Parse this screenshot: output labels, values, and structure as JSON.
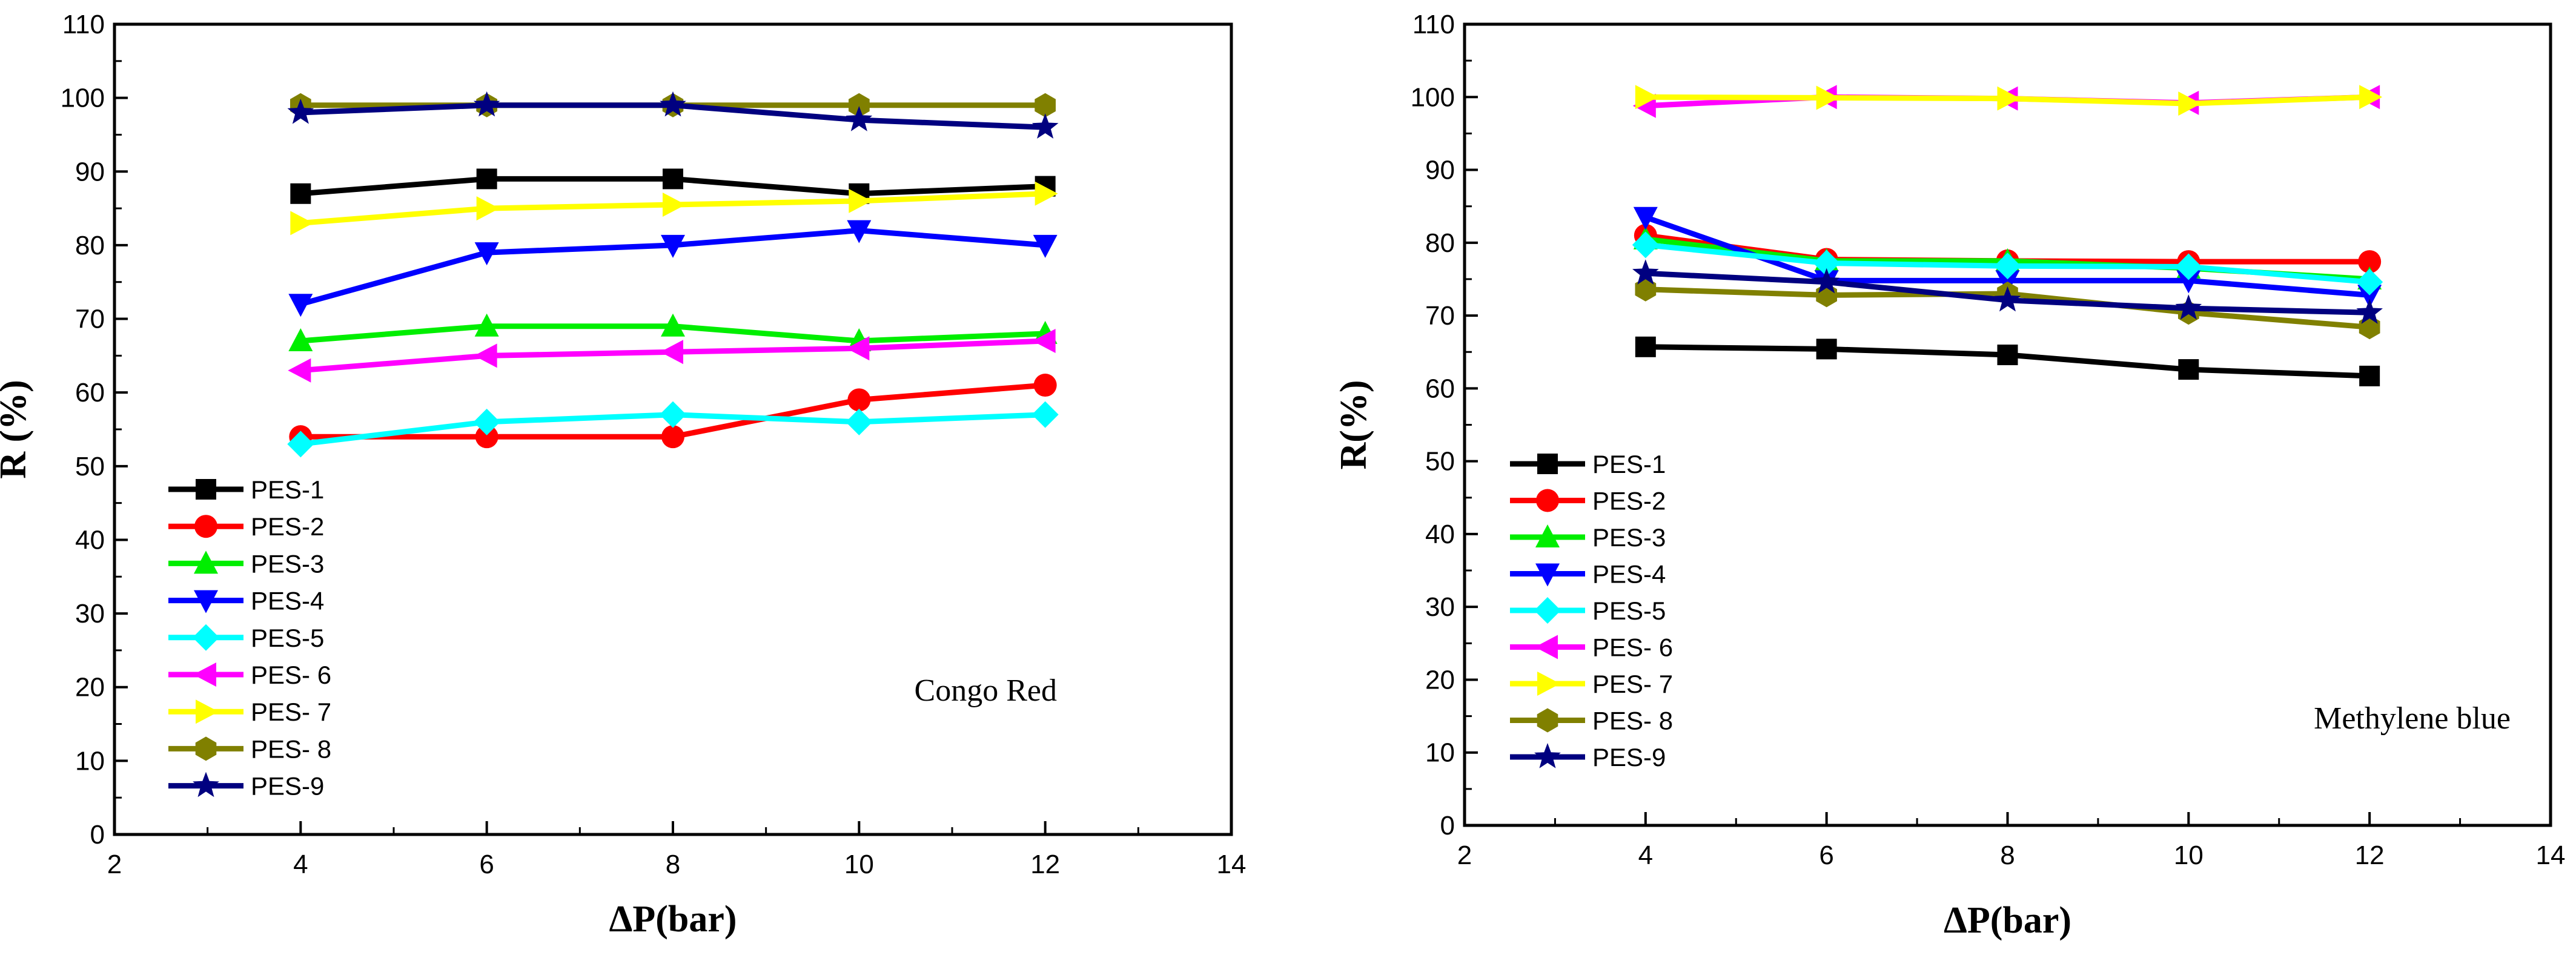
{
  "chart_data": [
    {
      "type": "line",
      "annotation": "Congo Red",
      "xlabel": "ΔP(bar)",
      "ylabel": "R (%)",
      "xlim": [
        2,
        14
      ],
      "ylim": [
        0,
        110
      ],
      "x_ticks": [
        "2",
        "4",
        "6",
        "8",
        "10",
        "12",
        "14"
      ],
      "y_ticks": [
        "0",
        "10",
        "20",
        "30",
        "40",
        "50",
        "60",
        "70",
        "80",
        "90",
        "100",
        "110"
      ],
      "x": [
        4,
        6,
        8,
        10,
        12
      ],
      "legend_position": "lower-left",
      "series": [
        {
          "name": "PES-1",
          "values": [
            87,
            89,
            89,
            87,
            88
          ],
          "color": "#000000",
          "marker": "square"
        },
        {
          "name": "PES-2",
          "values": [
            54,
            54,
            54,
            59,
            61
          ],
          "color": "#ff0000",
          "marker": "circle"
        },
        {
          "name": "PES-3",
          "values": [
            67,
            69,
            69,
            67,
            68
          ],
          "color": "#00ee00",
          "marker": "triangle-up"
        },
        {
          "name": "PES-4",
          "values": [
            72,
            79,
            80,
            82,
            80
          ],
          "color": "#0000ff",
          "marker": "triangle-down"
        },
        {
          "name": "PES-5",
          "values": [
            53,
            56,
            57,
            56,
            57
          ],
          "color": "#00ffff",
          "marker": "diamond"
        },
        {
          "name": "PES- 6",
          "values": [
            63,
            65,
            65.5,
            66,
            67
          ],
          "color": "#ff00ff",
          "marker": "triangle-left"
        },
        {
          "name": "PES- 7",
          "values": [
            83,
            85,
            85.5,
            86,
            87
          ],
          "color": "#ffff00",
          "marker": "triangle-right"
        },
        {
          "name": "PES- 8",
          "values": [
            99,
            99,
            99,
            99,
            99
          ],
          "color": "#808000",
          "marker": "hexagon"
        },
        {
          "name": "PES-9",
          "values": [
            98,
            99,
            99,
            97,
            96
          ],
          "color": "#000080",
          "marker": "star"
        }
      ]
    },
    {
      "type": "line",
      "annotation": "Methylene blue",
      "xlabel": "ΔP(bar)",
      "ylabel": "R(%)",
      "xlim": [
        2,
        14
      ],
      "ylim": [
        0,
        110
      ],
      "x_ticks": [
        "2",
        "4",
        "6",
        "8",
        "10",
        "12",
        "14"
      ],
      "y_ticks": [
        "0",
        "10",
        "20",
        "30",
        "40",
        "50",
        "60",
        "70",
        "80",
        "90",
        "100",
        "110"
      ],
      "x": [
        4,
        6,
        8,
        10,
        12
      ],
      "legend_position": "lower-left",
      "series": [
        {
          "name": "PES-1",
          "values": [
            65.7,
            65.4,
            64.6,
            62.6,
            61.7
          ],
          "color": "#000000",
          "marker": "square"
        },
        {
          "name": "PES-2",
          "values": [
            81,
            77.7,
            77.5,
            77.4,
            77.4
          ],
          "color": "#ff0000",
          "marker": "circle"
        },
        {
          "name": "PES-3",
          "values": [
            80.5,
            77.5,
            77.5,
            76.5,
            75
          ],
          "color": "#00ee00",
          "marker": "triangle-up"
        },
        {
          "name": "PES-4",
          "values": [
            83.5,
            74.8,
            74.8,
            74.8,
            72.8
          ],
          "color": "#0000ff",
          "marker": "triangle-down"
        },
        {
          "name": "PES-5",
          "values": [
            79.7,
            77.2,
            76.8,
            76.7,
            74.6
          ],
          "color": "#00ffff",
          "marker": "diamond"
        },
        {
          "name": "PES- 6",
          "values": [
            98.8,
            100,
            99.8,
            99.2,
            100
          ],
          "color": "#ff00ff",
          "marker": "triangle-left"
        },
        {
          "name": "PES- 7",
          "values": [
            100,
            99.9,
            99.8,
            99.1,
            100
          ],
          "color": "#ffff00",
          "marker": "triangle-right"
        },
        {
          "name": "PES- 8",
          "values": [
            73.6,
            72.8,
            73,
            70.4,
            68.4
          ],
          "color": "#808000",
          "marker": "hexagon"
        },
        {
          "name": "PES-9",
          "values": [
            75.8,
            74.6,
            72.1,
            71,
            70.4
          ],
          "color": "#000080",
          "marker": "star"
        }
      ]
    }
  ]
}
